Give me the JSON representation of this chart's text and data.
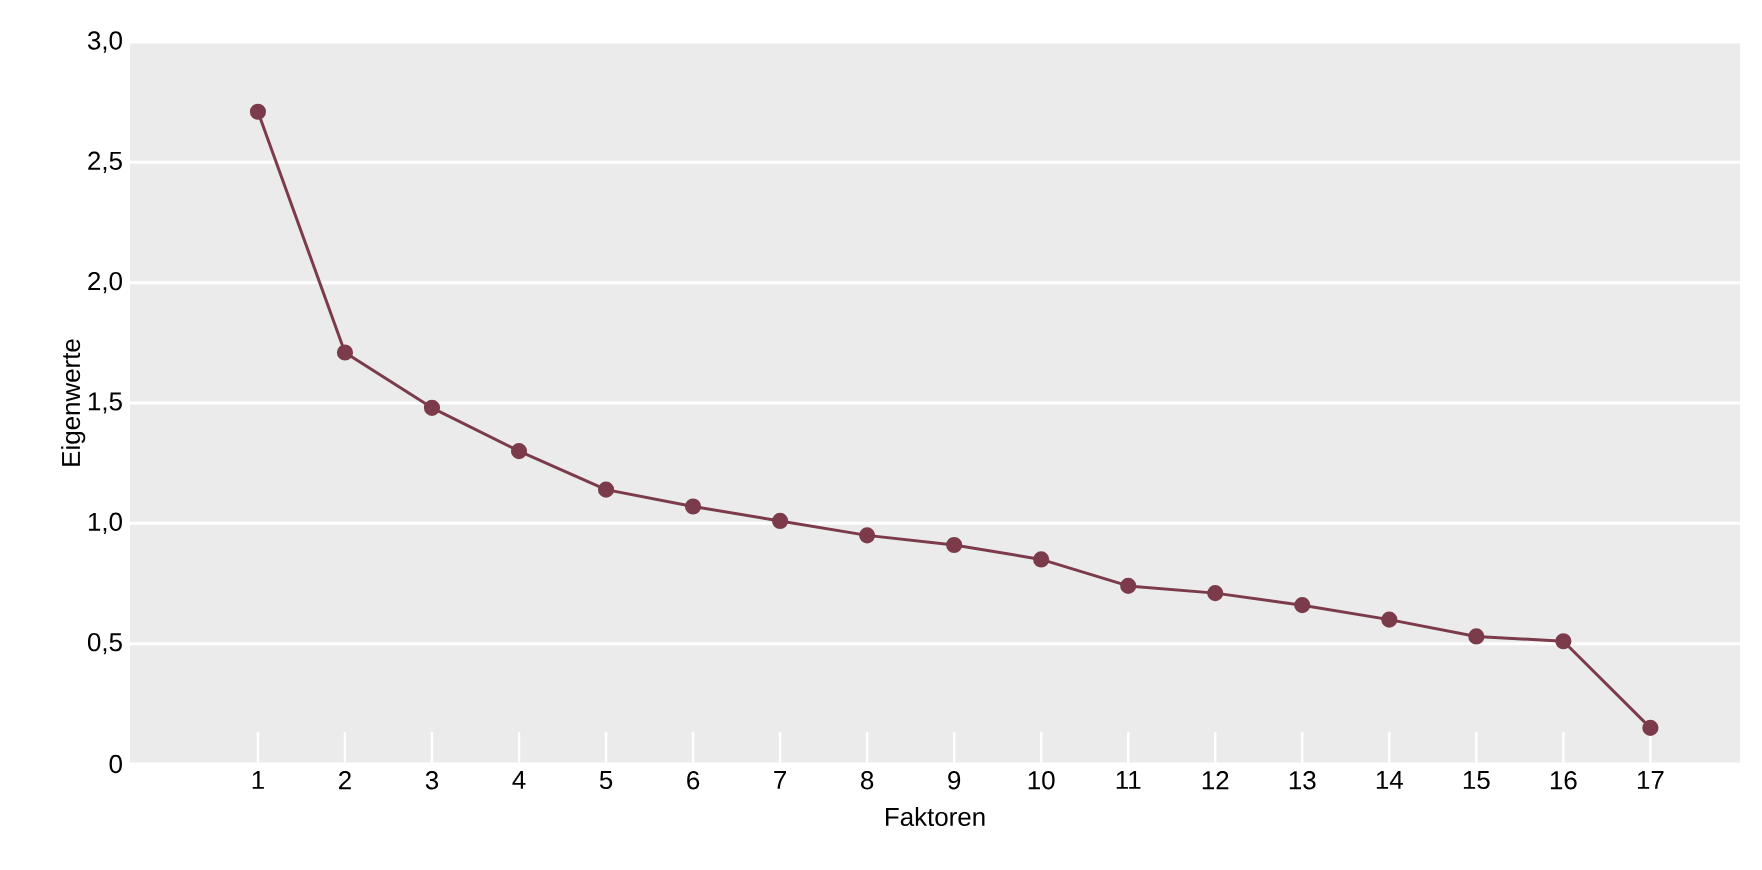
{
  "chart_data": {
    "type": "line",
    "xlabel": "Faktoren",
    "ylabel": "Eigenwerte",
    "categories": [
      "1",
      "2",
      "3",
      "4",
      "5",
      "6",
      "7",
      "8",
      "9",
      "10",
      "11",
      "12",
      "13",
      "14",
      "15",
      "16",
      "17"
    ],
    "values": [
      2.71,
      1.71,
      1.48,
      1.3,
      1.14,
      1.07,
      1.01,
      0.95,
      0.91,
      0.85,
      0.74,
      0.71,
      0.66,
      0.6,
      0.53,
      0.51,
      0.15
    ],
    "color": "#7b3b4b",
    "marker": "circle",
    "line_style": "solid",
    "grid": "y",
    "ylim": [
      0,
      3
    ],
    "yticks": [
      0,
      {
        "value": 0.5,
        "label": "0,5"
      },
      {
        "value": 1,
        "label": "1,0"
      },
      {
        "value": 1.5,
        "label": "1,5"
      },
      {
        "value": 2,
        "label": "2,0"
      },
      {
        "value": 2.5,
        "label": "2,5"
      },
      {
        "value": 3,
        "label": "3,0"
      }
    ]
  }
}
